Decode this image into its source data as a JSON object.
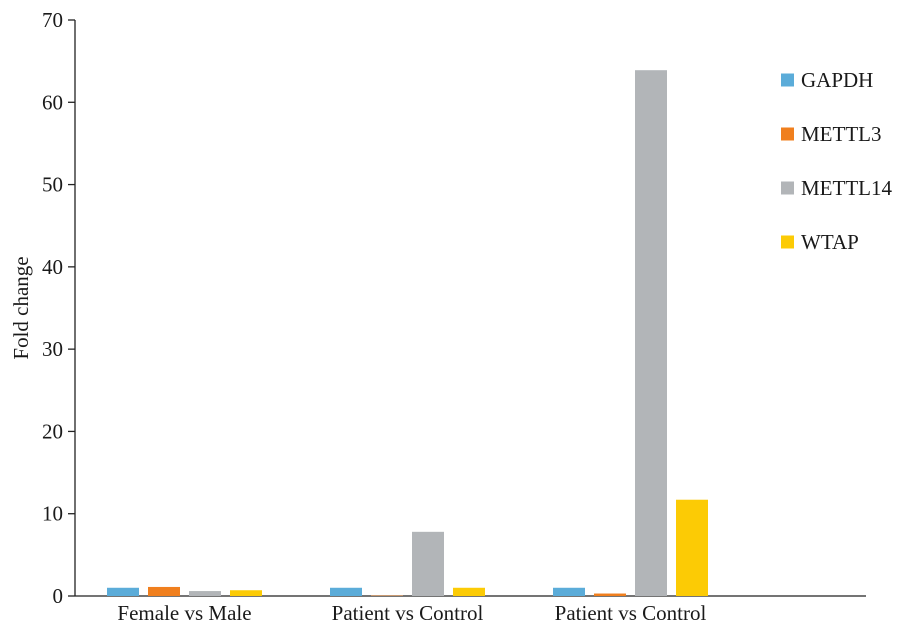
{
  "chart_data": {
    "type": "bar",
    "title": "",
    "xlabel": "",
    "ylabel": "Fold change",
    "ylim": [
      0,
      70
    ],
    "yticks": [
      0,
      10,
      20,
      30,
      40,
      50,
      60,
      70
    ],
    "categories": [
      "Female vs Male",
      "Patient vs Control",
      "Patient vs Control"
    ],
    "series": [
      {
        "name": "GAPDH",
        "color": "#5bacd9",
        "values": [
          1.0,
          1.0,
          1.0
        ]
      },
      {
        "name": "METTL3",
        "color": "#f07f1e",
        "values": [
          1.1,
          0.05,
          0.3
        ]
      },
      {
        "name": "METTL14",
        "color": "#b2b5b8",
        "values": [
          0.6,
          7.8,
          63.9
        ]
      },
      {
        "name": "WTAP",
        "color": "#fccb05",
        "values": [
          0.7,
          1.0,
          11.7
        ]
      }
    ],
    "legend_position": "top-right",
    "grid": false
  }
}
